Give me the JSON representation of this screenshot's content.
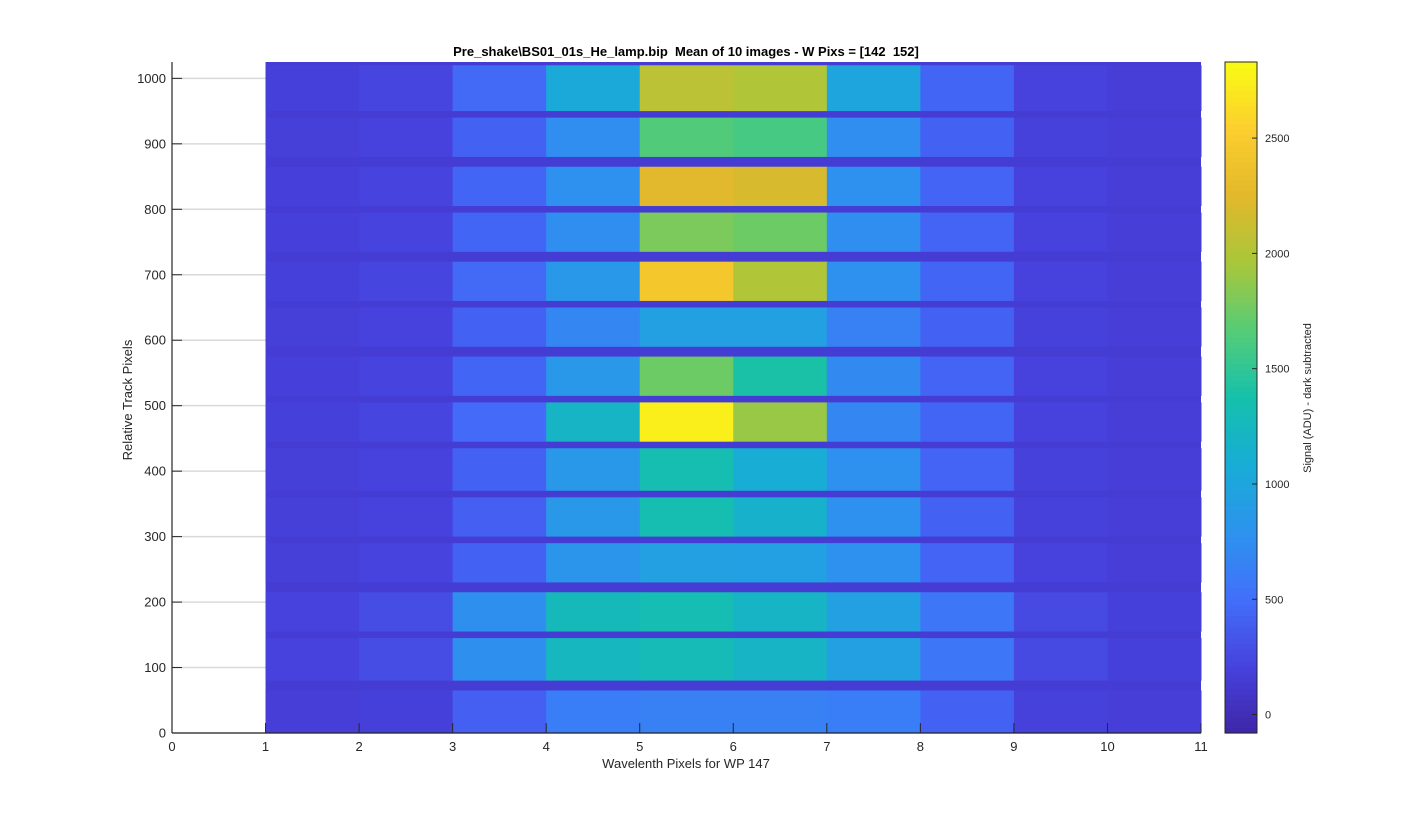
{
  "chart_data": {
    "type": "heatmap",
    "title": "Pre_shake\\BS01_01s_He_lamp.bip  Mean of 10 images - W Pixs = [142  152]",
    "xlabel": "Wavelenth Pixels for WP 147",
    "ylabel": "Relative Track Pixels",
    "colorbar_label": "Signal (ADU) - dark subtracted",
    "xlim": [
      0,
      11
    ],
    "ylim": [
      0,
      1025
    ],
    "clim": [
      -80,
      2830
    ],
    "colormap": "parula",
    "grid": "y-major",
    "xticks": [
      0,
      1,
      2,
      3,
      4,
      5,
      6,
      7,
      8,
      9,
      10,
      11
    ],
    "yticks": [
      0,
      100,
      200,
      300,
      400,
      500,
      600,
      700,
      800,
      900,
      1000
    ],
    "colorbar_ticks": [
      0,
      500,
      1000,
      1500,
      2000,
      2500
    ],
    "image_x_range": [
      1,
      11
    ],
    "columns": [
      1,
      2,
      3,
      4,
      5,
      6,
      7,
      8,
      9,
      10
    ],
    "background_level": 150,
    "tracks": [
      {
        "y0": 0,
        "y1": 65,
        "values": [
          170,
          190,
          400,
          620,
          650,
          650,
          620,
          420,
          200,
          170
        ]
      },
      {
        "y0": 80,
        "y1": 145,
        "values": [
          210,
          280,
          760,
          1250,
          1300,
          1200,
          950,
          560,
          260,
          190
        ]
      },
      {
        "y0": 155,
        "y1": 215,
        "values": [
          210,
          280,
          760,
          1280,
          1330,
          1200,
          950,
          560,
          260,
          190
        ]
      },
      {
        "y0": 230,
        "y1": 290,
        "values": [
          180,
          220,
          420,
          820,
          950,
          930,
          780,
          430,
          210,
          170
        ]
      },
      {
        "y0": 300,
        "y1": 360,
        "values": [
          180,
          210,
          400,
          850,
          1350,
          1150,
          780,
          420,
          200,
          170
        ]
      },
      {
        "y0": 370,
        "y1": 435,
        "values": [
          180,
          210,
          420,
          850,
          1350,
          1100,
          780,
          430,
          200,
          170
        ]
      },
      {
        "y0": 445,
        "y1": 505,
        "values": [
          190,
          230,
          470,
          1200,
          2750,
          1900,
          700,
          440,
          210,
          170
        ]
      },
      {
        "y0": 515,
        "y1": 575,
        "values": [
          185,
          220,
          440,
          850,
          1750,
          1400,
          720,
          430,
          205,
          170
        ]
      },
      {
        "y0": 590,
        "y1": 650,
        "values": [
          180,
          210,
          420,
          700,
          950,
          950,
          650,
          420,
          200,
          170
        ]
      },
      {
        "y0": 660,
        "y1": 720,
        "values": [
          190,
          230,
          460,
          850,
          2450,
          2000,
          780,
          440,
          210,
          170
        ]
      },
      {
        "y0": 735,
        "y1": 795,
        "values": [
          185,
          220,
          440,
          750,
          1800,
          1750,
          750,
          430,
          205,
          170
        ]
      },
      {
        "y0": 805,
        "y1": 865,
        "values": [
          185,
          220,
          440,
          780,
          2250,
          2200,
          780,
          430,
          205,
          170
        ]
      },
      {
        "y0": 880,
        "y1": 940,
        "values": [
          180,
          210,
          420,
          750,
          1650,
          1600,
          750,
          420,
          200,
          170
        ]
      },
      {
        "y0": 950,
        "y1": 1020,
        "values": [
          190,
          230,
          460,
          1050,
          2050,
          2000,
          1000,
          440,
          210,
          170
        ]
      }
    ]
  }
}
